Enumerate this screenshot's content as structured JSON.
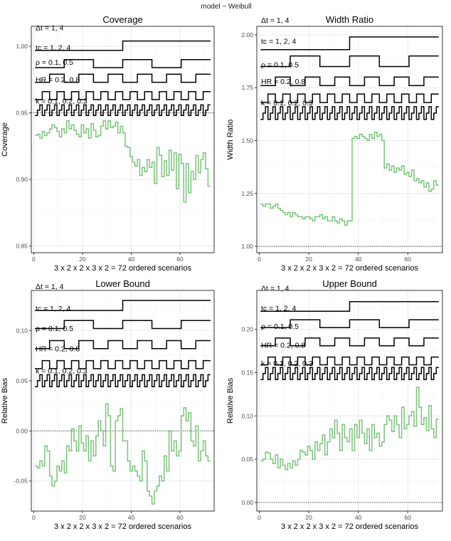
{
  "header": {
    "legend_text": "model  −  Weibull"
  },
  "colors": {
    "estimate": "#7ac47a",
    "steps": "#000000",
    "grid": "#ebebeb",
    "reference": "#333333",
    "panel_border": "#333333"
  },
  "step_labels": [
    "Δt = 1,  4",
    "tᴄ = 1,  2,  4",
    "ρ = 0.1,  0.5",
    "HR = 0.2,  0.8",
    "k = 0.1,  0.2,  0.3"
  ],
  "step_periods": [
    36,
    12,
    6,
    3,
    1
  ],
  "chart_data": [
    {
      "type": "line",
      "title": "Coverage",
      "xlabel": "3 x 2 x 2 x 3 x 2 = 72 ordered scenarios",
      "ylabel": "Coverage",
      "xlim": [
        -1,
        74
      ],
      "ylim": [
        0.845,
        1.015
      ],
      "xticks": [
        0,
        20,
        40,
        60
      ],
      "yticks": [
        0.85,
        0.9,
        0.95,
        1.0
      ],
      "ytick_labels": [
        "0.85",
        "0.90",
        "0.95",
        "1.00"
      ],
      "reference_line": 0.95,
      "grid": true,
      "step_levels": [
        1.004,
        0.99,
        0.979,
        0.966,
        0.952
      ],
      "step_heights": [
        0.007,
        0.006,
        0.006,
        0.006,
        0.004
      ],
      "series": [
        {
          "values": [
            0.933,
            0.934,
            0.931,
            0.936,
            0.933,
            0.935,
            0.938,
            0.941,
            0.939,
            0.936,
            0.932,
            0.938,
            0.935,
            0.944,
            0.938,
            0.941,
            0.937,
            0.934,
            0.932,
            0.941,
            0.935,
            0.938,
            0.931,
            0.942,
            0.937,
            0.932,
            0.933,
            0.94,
            0.944,
            0.938,
            0.944,
            0.939,
            0.94,
            0.943,
            0.935,
            0.94,
            0.935,
            0.925,
            0.924,
            0.917,
            0.913,
            0.91,
            0.915,
            0.903,
            0.909,
            0.906,
            0.915,
            0.909,
            0.913,
            0.897,
            0.924,
            0.918,
            0.902,
            0.914,
            0.903,
            0.922,
            0.907,
            0.92,
            0.893,
            0.919,
            0.912,
            0.883,
            0.912,
            0.89,
            0.906,
            0.9,
            0.918,
            0.905,
            0.915,
            0.92,
            0.908,
            0.895
          ]
        }
      ]
    },
    {
      "type": "line",
      "title": "Width Ratio",
      "xlabel": "3 x 2 x 2 x 3 x 2 = 72 ordered scenarios",
      "ylabel": "Width Ratio",
      "xlim": [
        -1,
        74
      ],
      "ylim": [
        0.97,
        2.04
      ],
      "xticks": [
        0,
        20,
        40,
        60
      ],
      "yticks": [
        1.0,
        1.25,
        1.5,
        1.75,
        2.0
      ],
      "ytick_labels": [
        "1.00",
        "1.25",
        "1.50",
        "1.75",
        "2.00"
      ],
      "reference_line": 1.0,
      "grid": true,
      "step_levels": [
        1.99,
        1.9,
        1.8,
        1.72,
        1.63
      ],
      "step_heights": [
        0.06,
        0.05,
        0.04,
        0.04,
        0.03
      ],
      "series": [
        {
          "values": [
            1.2,
            1.19,
            1.2,
            1.2,
            1.18,
            1.19,
            1.2,
            1.18,
            1.17,
            1.16,
            1.15,
            1.16,
            1.14,
            1.16,
            1.15,
            1.14,
            1.14,
            1.13,
            1.14,
            1.14,
            1.13,
            1.12,
            1.14,
            1.14,
            1.15,
            1.13,
            1.14,
            1.12,
            1.12,
            1.14,
            1.12,
            1.11,
            1.13,
            1.12,
            1.1,
            1.12,
            1.12,
            1.51,
            1.52,
            1.51,
            1.53,
            1.52,
            1.51,
            1.5,
            1.53,
            1.51,
            1.54,
            1.52,
            1.53,
            1.5,
            1.37,
            1.39,
            1.36,
            1.38,
            1.35,
            1.37,
            1.36,
            1.38,
            1.34,
            1.35,
            1.33,
            1.36,
            1.31,
            1.32,
            1.3,
            1.31,
            1.28,
            1.3,
            1.26,
            1.27,
            1.31,
            1.29
          ]
        }
      ]
    },
    {
      "type": "line",
      "title": "Lower Bound",
      "xlabel": "3 x 2 x 2 x 3 x 2 = 72 ordered scenarios",
      "ylabel": "Relative Bias",
      "xlim": [
        -1,
        74
      ],
      "ylim": [
        -0.08,
        0.14
      ],
      "xticks": [
        0,
        20,
        40,
        60
      ],
      "yticks": [
        -0.05,
        0.0,
        0.05,
        0.1
      ],
      "ytick_labels": [
        "-0.05",
        "0.00",
        "0.05",
        "0.10"
      ],
      "reference_line": 0.0,
      "grid": true,
      "step_levels": [
        0.13,
        0.11,
        0.09,
        0.07,
        0.05
      ],
      "step_heights": [
        0.01,
        0.008,
        0.008,
        0.008,
        0.006
      ],
      "series": [
        {
          "values": [
            -0.035,
            -0.037,
            -0.03,
            -0.035,
            -0.015,
            -0.02,
            -0.045,
            -0.055,
            -0.05,
            -0.035,
            -0.04,
            -0.03,
            -0.042,
            -0.015,
            -0.02,
            0.002,
            -0.01,
            -0.02,
            0.005,
            -0.012,
            -0.02,
            -0.005,
            -0.03,
            -0.01,
            -0.025,
            -0.005,
            0.01,
            0.0,
            -0.015,
            0.027,
            0.015,
            -0.035,
            -0.04,
            0.01,
            0.015,
            0.022,
            -0.01,
            -0.01,
            -0.03,
            -0.04,
            -0.035,
            -0.04,
            -0.045,
            -0.05,
            -0.02,
            -0.03,
            -0.06,
            -0.065,
            -0.073,
            -0.06,
            -0.055,
            -0.045,
            -0.05,
            -0.025,
            -0.04,
            0.0,
            -0.02,
            -0.01,
            -0.025,
            -0.02,
            0.015,
            0.023,
            0.01,
            0.018,
            -0.01,
            -0.015,
            0.005,
            -0.03,
            -0.02,
            -0.01,
            -0.025,
            -0.03
          ]
        }
      ]
    },
    {
      "type": "line",
      "title": "Upper Bound",
      "xlabel": "3 x 2 x 2 x 3 x 2 = 72 ordered scenarios",
      "ylabel": "Relative Bias",
      "xlim": [
        -1,
        74
      ],
      "ylim": [
        -0.01,
        0.245
      ],
      "xticks": [
        0,
        20,
        40,
        60
      ],
      "yticks": [
        0.0,
        0.05,
        0.1,
        0.15,
        0.2
      ],
      "ytick_labels": [
        "0.00",
        "0.05",
        "0.10",
        "0.15",
        "0.20"
      ],
      "reference_line": 0.0,
      "grid": true,
      "step_levels": [
        0.232,
        0.211,
        0.19,
        0.168,
        0.149
      ],
      "step_heights": [
        0.011,
        0.009,
        0.009,
        0.009,
        0.007
      ],
      "series": [
        {
          "values": [
            0.048,
            0.05,
            0.058,
            0.057,
            0.05,
            0.045,
            0.055,
            0.04,
            0.05,
            0.043,
            0.038,
            0.045,
            0.04,
            0.048,
            0.043,
            0.05,
            0.06,
            0.058,
            0.055,
            0.065,
            0.06,
            0.05,
            0.07,
            0.06,
            0.068,
            0.078,
            0.055,
            0.07,
            0.085,
            0.075,
            0.095,
            0.08,
            0.06,
            0.09,
            0.075,
            0.07,
            0.085,
            0.06,
            0.09,
            0.075,
            0.095,
            0.08,
            0.068,
            0.085,
            0.06,
            0.09,
            0.075,
            0.08,
            0.065,
            0.07,
            0.09,
            0.1,
            0.095,
            0.082,
            0.1,
            0.09,
            0.075,
            0.11,
            0.085,
            0.09,
            0.1,
            0.105,
            0.088,
            0.133,
            0.11,
            0.09,
            0.098,
            0.083,
            0.112,
            0.085,
            0.075,
            0.096
          ]
        }
      ]
    }
  ]
}
